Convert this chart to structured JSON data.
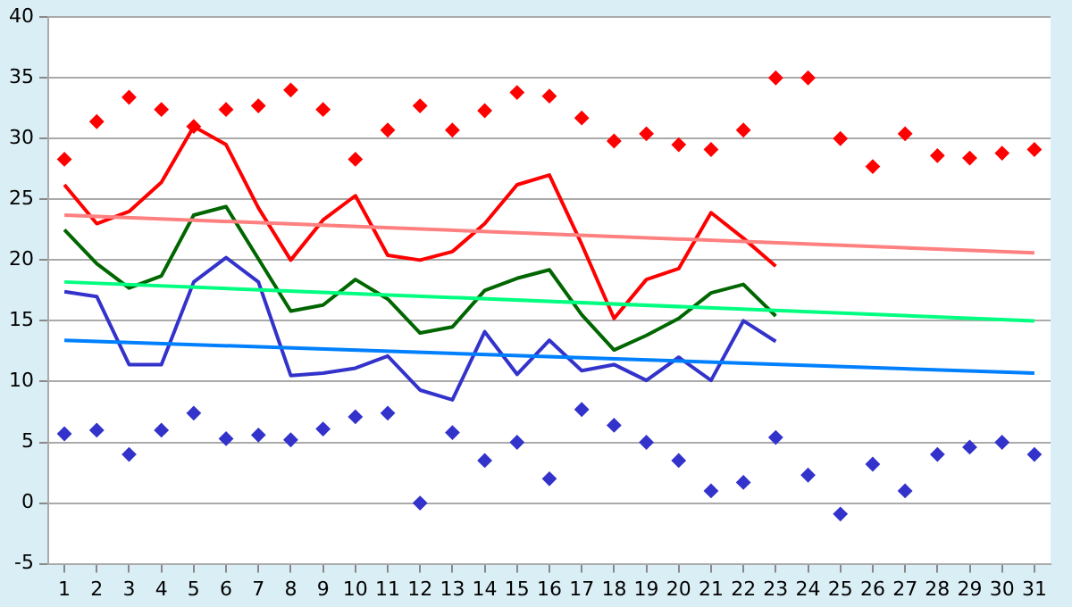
{
  "chart_data": {
    "type": "line",
    "x": [
      1,
      2,
      3,
      4,
      5,
      6,
      7,
      8,
      9,
      10,
      11,
      12,
      13,
      14,
      15,
      16,
      17,
      18,
      19,
      20,
      21,
      22,
      23,
      24,
      25,
      26,
      27,
      28,
      29,
      30,
      31
    ],
    "xlim": [
      0.5,
      31.5
    ],
    "xticks": [
      1,
      2,
      3,
      4,
      5,
      6,
      7,
      8,
      9,
      10,
      11,
      12,
      13,
      14,
      15,
      16,
      17,
      18,
      19,
      20,
      21,
      22,
      23,
      24,
      25,
      26,
      27,
      28,
      29,
      30,
      31
    ],
    "ylim": [
      -5,
      40
    ],
    "yticks": [
      -5,
      0,
      5,
      10,
      15,
      20,
      25,
      30,
      35,
      40
    ],
    "grid": "y",
    "series": [
      {
        "color": "#ff8080",
        "x": [
          1,
          31
        ],
        "values": [
          23.7,
          20.6
        ]
      },
      {
        "color": "#00ff80",
        "x": [
          1,
          31
        ],
        "values": [
          18.2,
          15
        ]
      },
      {
        "color": "#0080ff",
        "x": [
          1,
          31
        ],
        "values": [
          13.4,
          10.7
        ]
      },
      {
        "color": "#ff0000",
        "x": [
          1,
          2,
          3,
          4,
          5,
          6,
          7,
          8,
          9,
          10,
          11,
          12,
          13,
          14,
          15,
          16,
          17,
          18,
          19,
          20,
          21,
          22,
          23
        ],
        "values": [
          26.2,
          23,
          24,
          26.4,
          31,
          29.5,
          24.3,
          20,
          23.3,
          25.3,
          20.4,
          20,
          20.7,
          23,
          26.2,
          27,
          21.3,
          15.2,
          18.4,
          19.3,
          23.9,
          21.8,
          19.5
        ]
      },
      {
        "color": "#006600",
        "x": [
          1,
          2,
          3,
          4,
          5,
          6,
          7,
          8,
          9,
          10,
          11,
          12,
          13,
          14,
          15,
          16,
          17,
          18,
          19,
          20,
          21,
          22,
          23
        ],
        "values": [
          22.5,
          19.7,
          17.7,
          18.7,
          23.7,
          24.4,
          20.1,
          15.8,
          16.3,
          18.4,
          16.8,
          14,
          14.5,
          17.5,
          18.5,
          19.2,
          15.5,
          12.6,
          13.8,
          15.2,
          17.3,
          18,
          15.4
        ]
      },
      {
        "color": "#3333cc",
        "x": [
          1,
          2,
          3,
          4,
          5,
          6,
          7,
          8,
          9,
          10,
          11,
          12,
          13,
          14,
          15,
          16,
          17,
          18,
          19,
          20,
          21,
          22,
          23
        ],
        "values": [
          17.4,
          17,
          11.4,
          11.4,
          18.2,
          20.2,
          18.2,
          10.5,
          10.7,
          11.1,
          12.1,
          9.3,
          8.5,
          14.1,
          10.6,
          13.4,
          10.9,
          11.4,
          10.1,
          12,
          10.1,
          15,
          13.3
        ]
      },
      {
        "type": "scatter",
        "color": "#ff0000",
        "marker": "diamond",
        "values": [
          28.3,
          31.4,
          33.4,
          32.4,
          31,
          32.4,
          32.7,
          34,
          32.4,
          28.3,
          30.7,
          32.7,
          30.7,
          32.3,
          33.8,
          33.5,
          31.7,
          29.8,
          30.4,
          29.5,
          29.1,
          30.7,
          35,
          35,
          30,
          27.7,
          30.4,
          28.6,
          28.4,
          28.8,
          29.1
        ]
      },
      {
        "type": "scatter",
        "color": "#3333cc",
        "marker": "diamond",
        "values": [
          5.7,
          6,
          4,
          6,
          7.4,
          5.3,
          5.6,
          5.2,
          6.1,
          7.1,
          7.4,
          0,
          5.8,
          3.5,
          5,
          2,
          7.7,
          6.4,
          5,
          3.5,
          1,
          1.7,
          5.4,
          2.3,
          -0.9,
          3.2,
          1,
          4,
          4.6,
          5,
          4
        ]
      }
    ]
  }
}
